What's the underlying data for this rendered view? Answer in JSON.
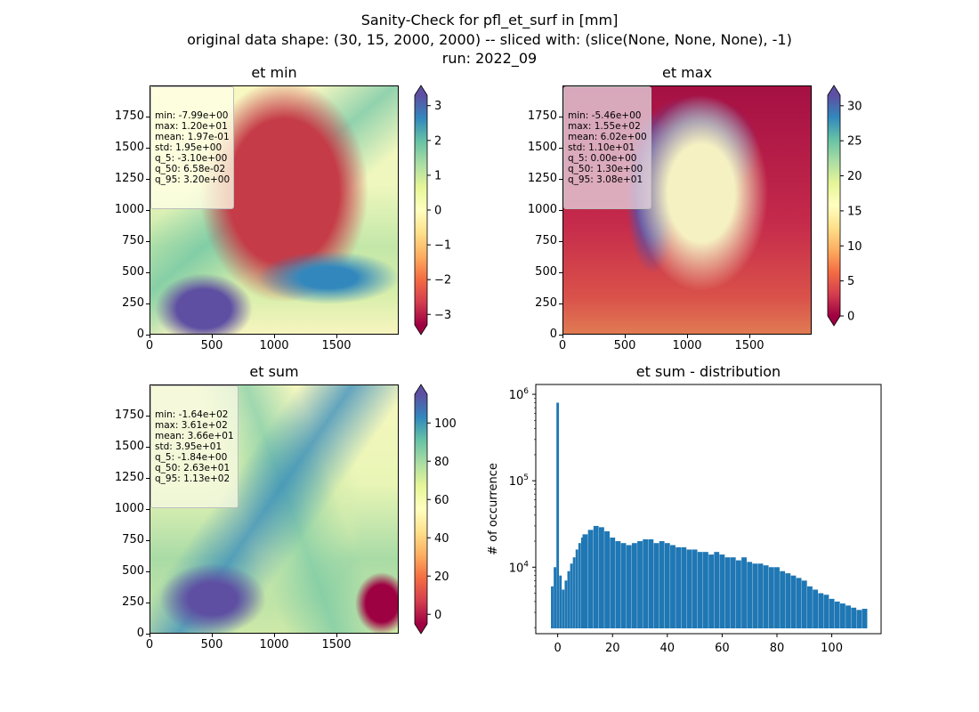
{
  "header": {
    "line1": "Sanity-Check for pfl_et_surf in [mm]",
    "line2": "original data shape: (30, 15, 2000, 2000) -- sliced with: (slice(None, None, None), -1)",
    "line3": "run: 2022_09"
  },
  "chart_data": [
    {
      "type": "heatmap",
      "title": "et min",
      "xticks": [
        0,
        500,
        1000,
        1500
      ],
      "yticks": [
        0,
        250,
        500,
        750,
        1000,
        1250,
        1500,
        1750
      ],
      "xlim": [
        0,
        2000
      ],
      "ylim": [
        0,
        2000
      ],
      "colorbar": {
        "vmin": -3.3,
        "vmax": 3.3,
        "ticks": [
          -3,
          -2,
          -1,
          0,
          1,
          2,
          3
        ],
        "extend": "both",
        "cmap": "Spectral"
      },
      "stats": [
        "min: -7.99e+00",
        "max: 1.20e+01",
        "mean: 1.97e-01",
        "std: 1.95e+00",
        "q_5: -3.10e+00",
        "q_50: 6.58e-02",
        "q_95: 3.20e+00"
      ]
    },
    {
      "type": "heatmap",
      "title": "et max",
      "xticks": [
        0,
        500,
        1000,
        1500
      ],
      "yticks": [
        0,
        250,
        500,
        750,
        1000,
        1250,
        1500,
        1750
      ],
      "xlim": [
        0,
        2000
      ],
      "ylim": [
        0,
        2000
      ],
      "colorbar": {
        "vmin": 0,
        "vmax": 31.5,
        "ticks": [
          0,
          5,
          10,
          15,
          20,
          25,
          30
        ],
        "extend": "both",
        "cmap": "Spectral"
      },
      "stats": [
        "min: -5.46e+00",
        "max: 1.55e+02",
        "mean: 6.02e+00",
        "std: 1.10e+01",
        "q_5: 0.00e+00",
        "q_50: 1.30e+00",
        "q_95: 3.08e+01"
      ]
    },
    {
      "type": "heatmap",
      "title": "et sum",
      "xticks": [
        0,
        500,
        1000,
        1500
      ],
      "yticks": [
        0,
        250,
        500,
        750,
        1000,
        1250,
        1500,
        1750
      ],
      "xlim": [
        0,
        2000
      ],
      "ylim": [
        0,
        2000
      ],
      "colorbar": {
        "vmin": -5,
        "vmax": 115,
        "ticks": [
          0,
          20,
          40,
          60,
          80,
          100
        ],
        "extend": "both",
        "cmap": "Spectral"
      },
      "stats": [
        "min: -1.64e+02",
        "max: 3.61e+02",
        "mean: 3.66e+01",
        "std: 3.95e+01",
        "q_5: -1.84e+00",
        "q_50: 2.63e+01",
        "q_95: 1.13e+02"
      ]
    },
    {
      "type": "bar",
      "title": "et sum - distribution",
      "ylabel": "# of occurrence",
      "yscale": "log",
      "color": "#1f77b4",
      "xlim": [
        -8,
        118
      ],
      "xticks": [
        0,
        20,
        40,
        60,
        80,
        100
      ],
      "yticks": [
        "10^4",
        "10^5",
        "10^6"
      ],
      "bins": [
        {
          "x": -2,
          "y": 6000
        },
        {
          "x": -1,
          "y": 10000
        },
        {
          "x": 0,
          "y": 800000
        },
        {
          "x": 1,
          "y": 8000
        },
        {
          "x": 2,
          "y": 5500
        },
        {
          "x": 3,
          "y": 7000
        },
        {
          "x": 4,
          "y": 9000
        },
        {
          "x": 5,
          "y": 11000
        },
        {
          "x": 6,
          "y": 13000
        },
        {
          "x": 7,
          "y": 16000
        },
        {
          "x": 8,
          "y": 19000
        },
        {
          "x": 9,
          "y": 22000
        },
        {
          "x": 10,
          "y": 24000
        },
        {
          "x": 12,
          "y": 27000
        },
        {
          "x": 14,
          "y": 30000
        },
        {
          "x": 16,
          "y": 29000
        },
        {
          "x": 18,
          "y": 26000
        },
        {
          "x": 20,
          "y": 22000
        },
        {
          "x": 22,
          "y": 20000
        },
        {
          "x": 24,
          "y": 19000
        },
        {
          "x": 26,
          "y": 18000
        },
        {
          "x": 28,
          "y": 19000
        },
        {
          "x": 30,
          "y": 20000
        },
        {
          "x": 32,
          "y": 21000
        },
        {
          "x": 34,
          "y": 21000
        },
        {
          "x": 36,
          "y": 19000
        },
        {
          "x": 38,
          "y": 20000
        },
        {
          "x": 40,
          "y": 19000
        },
        {
          "x": 42,
          "y": 18000
        },
        {
          "x": 44,
          "y": 17000
        },
        {
          "x": 46,
          "y": 17000
        },
        {
          "x": 48,
          "y": 16000
        },
        {
          "x": 50,
          "y": 16000
        },
        {
          "x": 52,
          "y": 15000
        },
        {
          "x": 54,
          "y": 15000
        },
        {
          "x": 56,
          "y": 14000
        },
        {
          "x": 58,
          "y": 15000
        },
        {
          "x": 60,
          "y": 14000
        },
        {
          "x": 62,
          "y": 13000
        },
        {
          "x": 64,
          "y": 13000
        },
        {
          "x": 66,
          "y": 12000
        },
        {
          "x": 68,
          "y": 13000
        },
        {
          "x": 70,
          "y": 11500
        },
        {
          "x": 72,
          "y": 11000
        },
        {
          "x": 74,
          "y": 11000
        },
        {
          "x": 76,
          "y": 10500
        },
        {
          "x": 78,
          "y": 10000
        },
        {
          "x": 80,
          "y": 10000
        },
        {
          "x": 82,
          "y": 9000
        },
        {
          "x": 84,
          "y": 8500
        },
        {
          "x": 86,
          "y": 8000
        },
        {
          "x": 88,
          "y": 7500
        },
        {
          "x": 90,
          "y": 7000
        },
        {
          "x": 92,
          "y": 6000
        },
        {
          "x": 94,
          "y": 5500
        },
        {
          "x": 96,
          "y": 5000
        },
        {
          "x": 98,
          "y": 4800
        },
        {
          "x": 100,
          "y": 4300
        },
        {
          "x": 102,
          "y": 4000
        },
        {
          "x": 104,
          "y": 3800
        },
        {
          "x": 106,
          "y": 3600
        },
        {
          "x": 108,
          "y": 3400
        },
        {
          "x": 110,
          "y": 3200
        },
        {
          "x": 112,
          "y": 3300
        }
      ]
    }
  ],
  "colors": {
    "deep_red": "#9e0142",
    "red": "#d53e4f",
    "orange": "#f46d43",
    "light_orange": "#fdae61",
    "pale_yellow": "#fee08b",
    "cream": "#ffffbf",
    "pale_green": "#e6f598",
    "green": "#abdda4",
    "teal": "#66c2a5",
    "blue": "#3288bd",
    "purple": "#5e4fa2",
    "hist_blue": "#1f77b4"
  }
}
